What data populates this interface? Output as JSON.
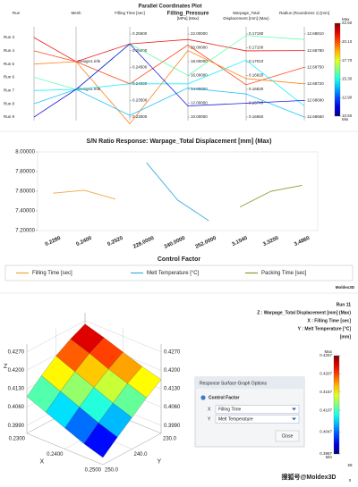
{
  "chart_data": [
    {
      "type": "parallel",
      "title": "Parallel Coordinates Plot",
      "axes": [
        {
          "label": [
            "Run"
          ]
        },
        {
          "label": [
            "Mesh"
          ]
        },
        {
          "label": [
            "Filling Time [sec]"
          ],
          "ylim": [
            0.23,
            0.255
          ],
          "yticks": [
            {
              "value": 0.255,
              "label": "0.25500"
            },
            {
              "value": 0.25,
              "label": "0.25000"
            },
            {
              "value": 0.245,
              "label": "0.24500"
            },
            {
              "value": 0.24,
              "label": "0.24000"
            },
            {
              "value": 0.235,
              "label": "0.23500"
            },
            {
              "value": 0.23,
              "label": "0.23000"
            }
          ]
        },
        {
          "label": [
            "Filling_Pressure",
            "[MPa] (Max)"
          ],
          "ylim": [
            10,
            22
          ],
          "yticks": [
            {
              "value": 22,
              "label": "22.00000"
            },
            {
              "value": 20,
              "label": "20.00000"
            },
            {
              "value": 18,
              "label": "18.00000"
            },
            {
              "value": 16,
              "label": "16.00000"
            },
            {
              "value": 14,
              "label": "14.00000"
            },
            {
              "value": 12,
              "label": "12.00000"
            },
            {
              "value": 10,
              "label": "10.00000"
            }
          ]
        },
        {
          "label": [
            "Warpage_Total",
            "Displacement [mm] (Max)"
          ],
          "ylim": [
            0.1665,
            0.1719
          ],
          "yticks": [
            {
              "value": 0.1719,
              "label": "0.17190"
            },
            {
              "value": 0.171,
              "label": "0.17100"
            },
            {
              "value": 0.1701,
              "label": "0.17010"
            },
            {
              "value": 0.1692,
              "label": "0.16920"
            },
            {
              "value": 0.1683,
              "label": "0.16830"
            },
            {
              "value": 0.1674,
              "label": "0.16740"
            },
            {
              "value": 0.1665,
              "label": "0.16650"
            }
          ]
        },
        {
          "label": [
            "Radius (Roundness 1) [mm]"
          ],
          "ylim": [
            12.6866,
            12.6881
          ],
          "yticks": [
            {
              "value": 12.6881,
              "label": "12.68810"
            },
            {
              "value": 12.6878,
              "label": "12.68780"
            },
            {
              "value": 12.6875,
              "label": "12.68750"
            },
            {
              "value": 12.6872,
              "label": "12.68720"
            },
            {
              "value": 12.6869,
              "label": "12.68690"
            },
            {
              "value": 12.6866,
              "label": "12.68660"
            }
          ]
        }
      ],
      "groups": [
        {
          "mesh": "Design1.mfe",
          "runs": [
            {
              "name": "Run 3",
              "values": [
                0.252,
                21.2,
                0.1708,
                12.6878
              ]
            },
            {
              "name": "Run 4",
              "values": [
                0.24,
                20.4,
                0.1686,
                12.6875
              ]
            },
            {
              "name": "Run 5",
              "values": [
                0.228,
                19.6,
                0.169,
                12.6872
              ]
            }
          ]
        },
        {
          "mesh": "Design2.mfe",
          "runs": [
            {
              "name": "Run 6",
              "values": [
                0.252,
                16.0,
                0.1718,
                12.688
              ]
            },
            {
              "name": "Run 7",
              "values": [
                0.24,
                14.8,
                0.1702,
                12.6868
              ]
            },
            {
              "name": "Run 8",
              "values": [
                0.2305,
                14.2,
                0.168,
                12.6866
              ]
            },
            {
              "name": "Run 9",
              "values": [
                0.252,
                11.6,
                0.1674,
                12.6869
              ]
            }
          ]
        }
      ],
      "colorbar": {
        "max_label": "Max",
        "min_label": "Min",
        "lim": [
          10.5,
          22.5
        ],
        "ticks": [
          {
            "value": 22.5,
            "label": "22.50"
          },
          {
            "value": 20.1,
            "label": "20.10"
          },
          {
            "value": 17.7,
            "label": "17.70"
          },
          {
            "value": 15.3,
            "label": "15.30"
          },
          {
            "value": 12.9,
            "label": "12.90"
          },
          {
            "value": 10.5,
            "label": "10.50"
          }
        ]
      }
    },
    {
      "type": "line",
      "title": "S/N Ratio Response: Warpage_Total Displacement [mm] (Max)",
      "xlabel": "Control Factor",
      "categories": [
        "0.2280",
        "0.2400",
        "0.2520",
        "228.0000",
        "240.0000",
        "252.0000",
        "3.1540",
        "3.3200",
        "3.4860"
      ],
      "ylim": [
        7.2,
        8.0
      ],
      "yticks": [
        {
          "value": 8.0,
          "label": "8.00000"
        },
        {
          "value": 7.8,
          "label": "7.80000"
        },
        {
          "value": 7.6,
          "label": "7.60000"
        },
        {
          "value": 7.4,
          "label": "7.40000"
        },
        {
          "value": 7.2,
          "label": "7.20000"
        }
      ],
      "series": [
        {
          "name": "Filling Time [sec]",
          "color": "#f0a53a",
          "values": [
            7.58,
            7.61,
            7.52,
            null,
            null,
            null,
            null,
            null,
            null
          ]
        },
        {
          "name": "Melt Temperature [°C]",
          "color": "#3aaee0",
          "values": [
            null,
            null,
            null,
            7.89,
            7.51,
            7.3,
            null,
            null,
            null
          ]
        },
        {
          "name": "Packing Time [sec]",
          "color": "#8c9a2e",
          "values": [
            null,
            null,
            null,
            null,
            null,
            null,
            7.44,
            7.6,
            7.66
          ]
        }
      ],
      "logo": "Moldex3D"
    },
    {
      "type": "surface",
      "header": {
        "run": "Run 11",
        "z": "Z : Warpage_Total Displacement [mm] (Max)",
        "x": "X : Filling Time [sec]",
        "y": "Y : Melt Temperature [°C]",
        "unit": "[mm]"
      },
      "axis_names": {
        "x": "X",
        "y": "Y",
        "z": "Z"
      },
      "x": [
        0.23,
        0.235,
        0.24,
        0.245,
        0.25
      ],
      "y": [
        230,
        235,
        240,
        245,
        250
      ],
      "z": [
        [
          0.4257,
          0.423,
          0.4195,
          0.415,
          0.41
        ],
        [
          0.4235,
          0.4205,
          0.4165,
          0.412,
          0.407
        ],
        [
          0.421,
          0.4175,
          0.4135,
          0.409,
          0.404
        ],
        [
          0.4185,
          0.415,
          0.4105,
          0.406,
          0.401
        ],
        [
          0.4165,
          0.4125,
          0.408,
          0.4035,
          0.3987
        ]
      ],
      "xlim": [
        0.23,
        0.25
      ],
      "xticks": [
        {
          "value": 0.23,
          "label": "0.2300"
        },
        {
          "value": 0.24,
          "label": "0.2400"
        },
        {
          "value": 0.25,
          "label": "0.2500"
        }
      ],
      "ylim": [
        230,
        250
      ],
      "yticks": [
        {
          "value": 230,
          "label": "230.0"
        },
        {
          "value": 240,
          "label": "240.0"
        },
        {
          "value": 250,
          "label": "250.0"
        }
      ],
      "zlim": [
        0.396,
        0.43
      ],
      "zticks": [
        {
          "value": 0.399,
          "label": "0.3990"
        },
        {
          "value": 0.406,
          "label": "0.4060"
        },
        {
          "value": 0.413,
          "label": "0.4130"
        },
        {
          "value": 0.42,
          "label": "0.4200"
        },
        {
          "value": 0.427,
          "label": "0.4270"
        }
      ],
      "colorbar": {
        "max_label": "Max",
        "min_label": "Min",
        "lim": [
          0.3987,
          0.4257
        ],
        "ticks": [
          0.4257,
          0.4207,
          0.4157,
          0.4107,
          0.4047,
          0.3987
        ]
      }
    }
  ],
  "dialog": {
    "title": "Response Surface Graph Options",
    "section": "Control Factor",
    "rows": [
      {
        "axis": "X",
        "value": "Filling Time"
      },
      {
        "axis": "Y",
        "value": "Melt Temperature"
      }
    ],
    "button": "Close"
  },
  "watermark": "搜狐号@Moldex3D",
  "corner_labels": [
    "58",
    "0"
  ]
}
